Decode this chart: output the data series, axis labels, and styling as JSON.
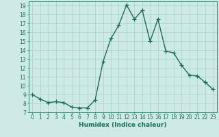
{
  "x": [
    0,
    1,
    2,
    3,
    4,
    5,
    6,
    7,
    8,
    9,
    10,
    11,
    12,
    13,
    14,
    15,
    16,
    17,
    18,
    19,
    20,
    21,
    22,
    23
  ],
  "y": [
    9.0,
    8.5,
    8.1,
    8.2,
    8.1,
    7.6,
    7.5,
    7.5,
    8.4,
    12.7,
    15.3,
    16.8,
    19.1,
    17.5,
    18.5,
    15.0,
    17.5,
    13.9,
    13.7,
    12.3,
    11.2,
    11.1,
    10.4,
    9.6
  ],
  "line_color": "#1a6b5a",
  "marker": "+",
  "markersize": 4,
  "linewidth": 1.0,
  "background_color": "#ceeae6",
  "grid_color": "#aacfcb",
  "xlabel": "Humidex (Indice chaleur)",
  "xlim": [
    -0.5,
    23.5
  ],
  "ylim": [
    7,
    19.5
  ],
  "yticks": [
    7,
    8,
    9,
    10,
    11,
    12,
    13,
    14,
    15,
    16,
    17,
    18,
    19
  ],
  "xticks": [
    0,
    1,
    2,
    3,
    4,
    5,
    6,
    7,
    8,
    9,
    10,
    11,
    12,
    13,
    14,
    15,
    16,
    17,
    18,
    19,
    20,
    21,
    22,
    23
  ],
  "tick_fontsize": 5.5,
  "label_fontsize": 6.5,
  "tick_color": "#1a6b5a",
  "axis_color": "#1a6b5a"
}
